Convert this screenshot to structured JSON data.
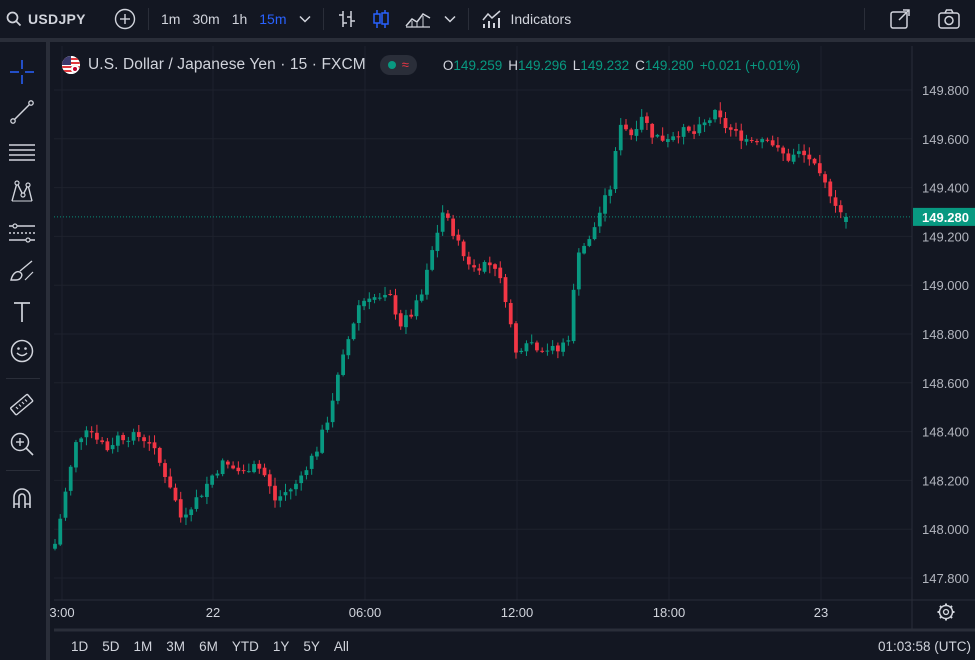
{
  "toolbar": {
    "symbol": "USDJPY",
    "intervals": [
      "1m",
      "30m",
      "1h",
      "15m"
    ],
    "active_interval": "15m",
    "indicators_label": "Indicators"
  },
  "legend": {
    "title": "U.S. Dollar / Japanese Yen · 15 · FXCM",
    "open_label": "O",
    "open": "149.259",
    "high_label": "H",
    "high": "149.296",
    "low_label": "L",
    "low": "149.232",
    "close_label": "C",
    "close": "149.280",
    "change": "+0.021 (+0.01%)"
  },
  "price_scale": {
    "ticks": [
      "149.800",
      "149.600",
      "149.400",
      "149.200",
      "149.000",
      "148.800",
      "148.600",
      "148.400",
      "148.200",
      "148.000",
      "147.800"
    ],
    "last_price": "149.280"
  },
  "time_scale": {
    "ticks": [
      "3:00",
      "22",
      "06:00",
      "12:00",
      "18:00",
      "23"
    ]
  },
  "bottom": {
    "ranges": [
      "1D",
      "5D",
      "1M",
      "3M",
      "6M",
      "YTD",
      "1Y",
      "5Y",
      "All"
    ],
    "clock": "01:03:58 (UTC)"
  },
  "colors": {
    "background": "#131722",
    "up": "#089981",
    "down": "#f23645",
    "accent": "#2962ff",
    "grid": "#1e222d"
  },
  "icons": {
    "left_tools": [
      "crosshair-icon",
      "trendline-icon",
      "fib-levels-icon",
      "pattern-icon",
      "forecast-icon",
      "brush-icon",
      "text-icon",
      "emoji-icon",
      "ruler-icon",
      "zoom-in-icon",
      "magnet-icon"
    ]
  },
  "chart_data": {
    "type": "candlestick",
    "symbol": "USDJPY",
    "interval": "15",
    "ylim": [
      147.72,
      149.86
    ],
    "y_ticks": [
      147.8,
      148.0,
      148.2,
      148.4,
      148.6,
      148.8,
      149.0,
      149.2,
      149.4,
      149.6,
      149.8
    ],
    "x_ticks": [
      "3:00",
      "22",
      "06:00",
      "12:00",
      "18:00",
      "23"
    ],
    "last_price": 149.28,
    "candles": []
  }
}
